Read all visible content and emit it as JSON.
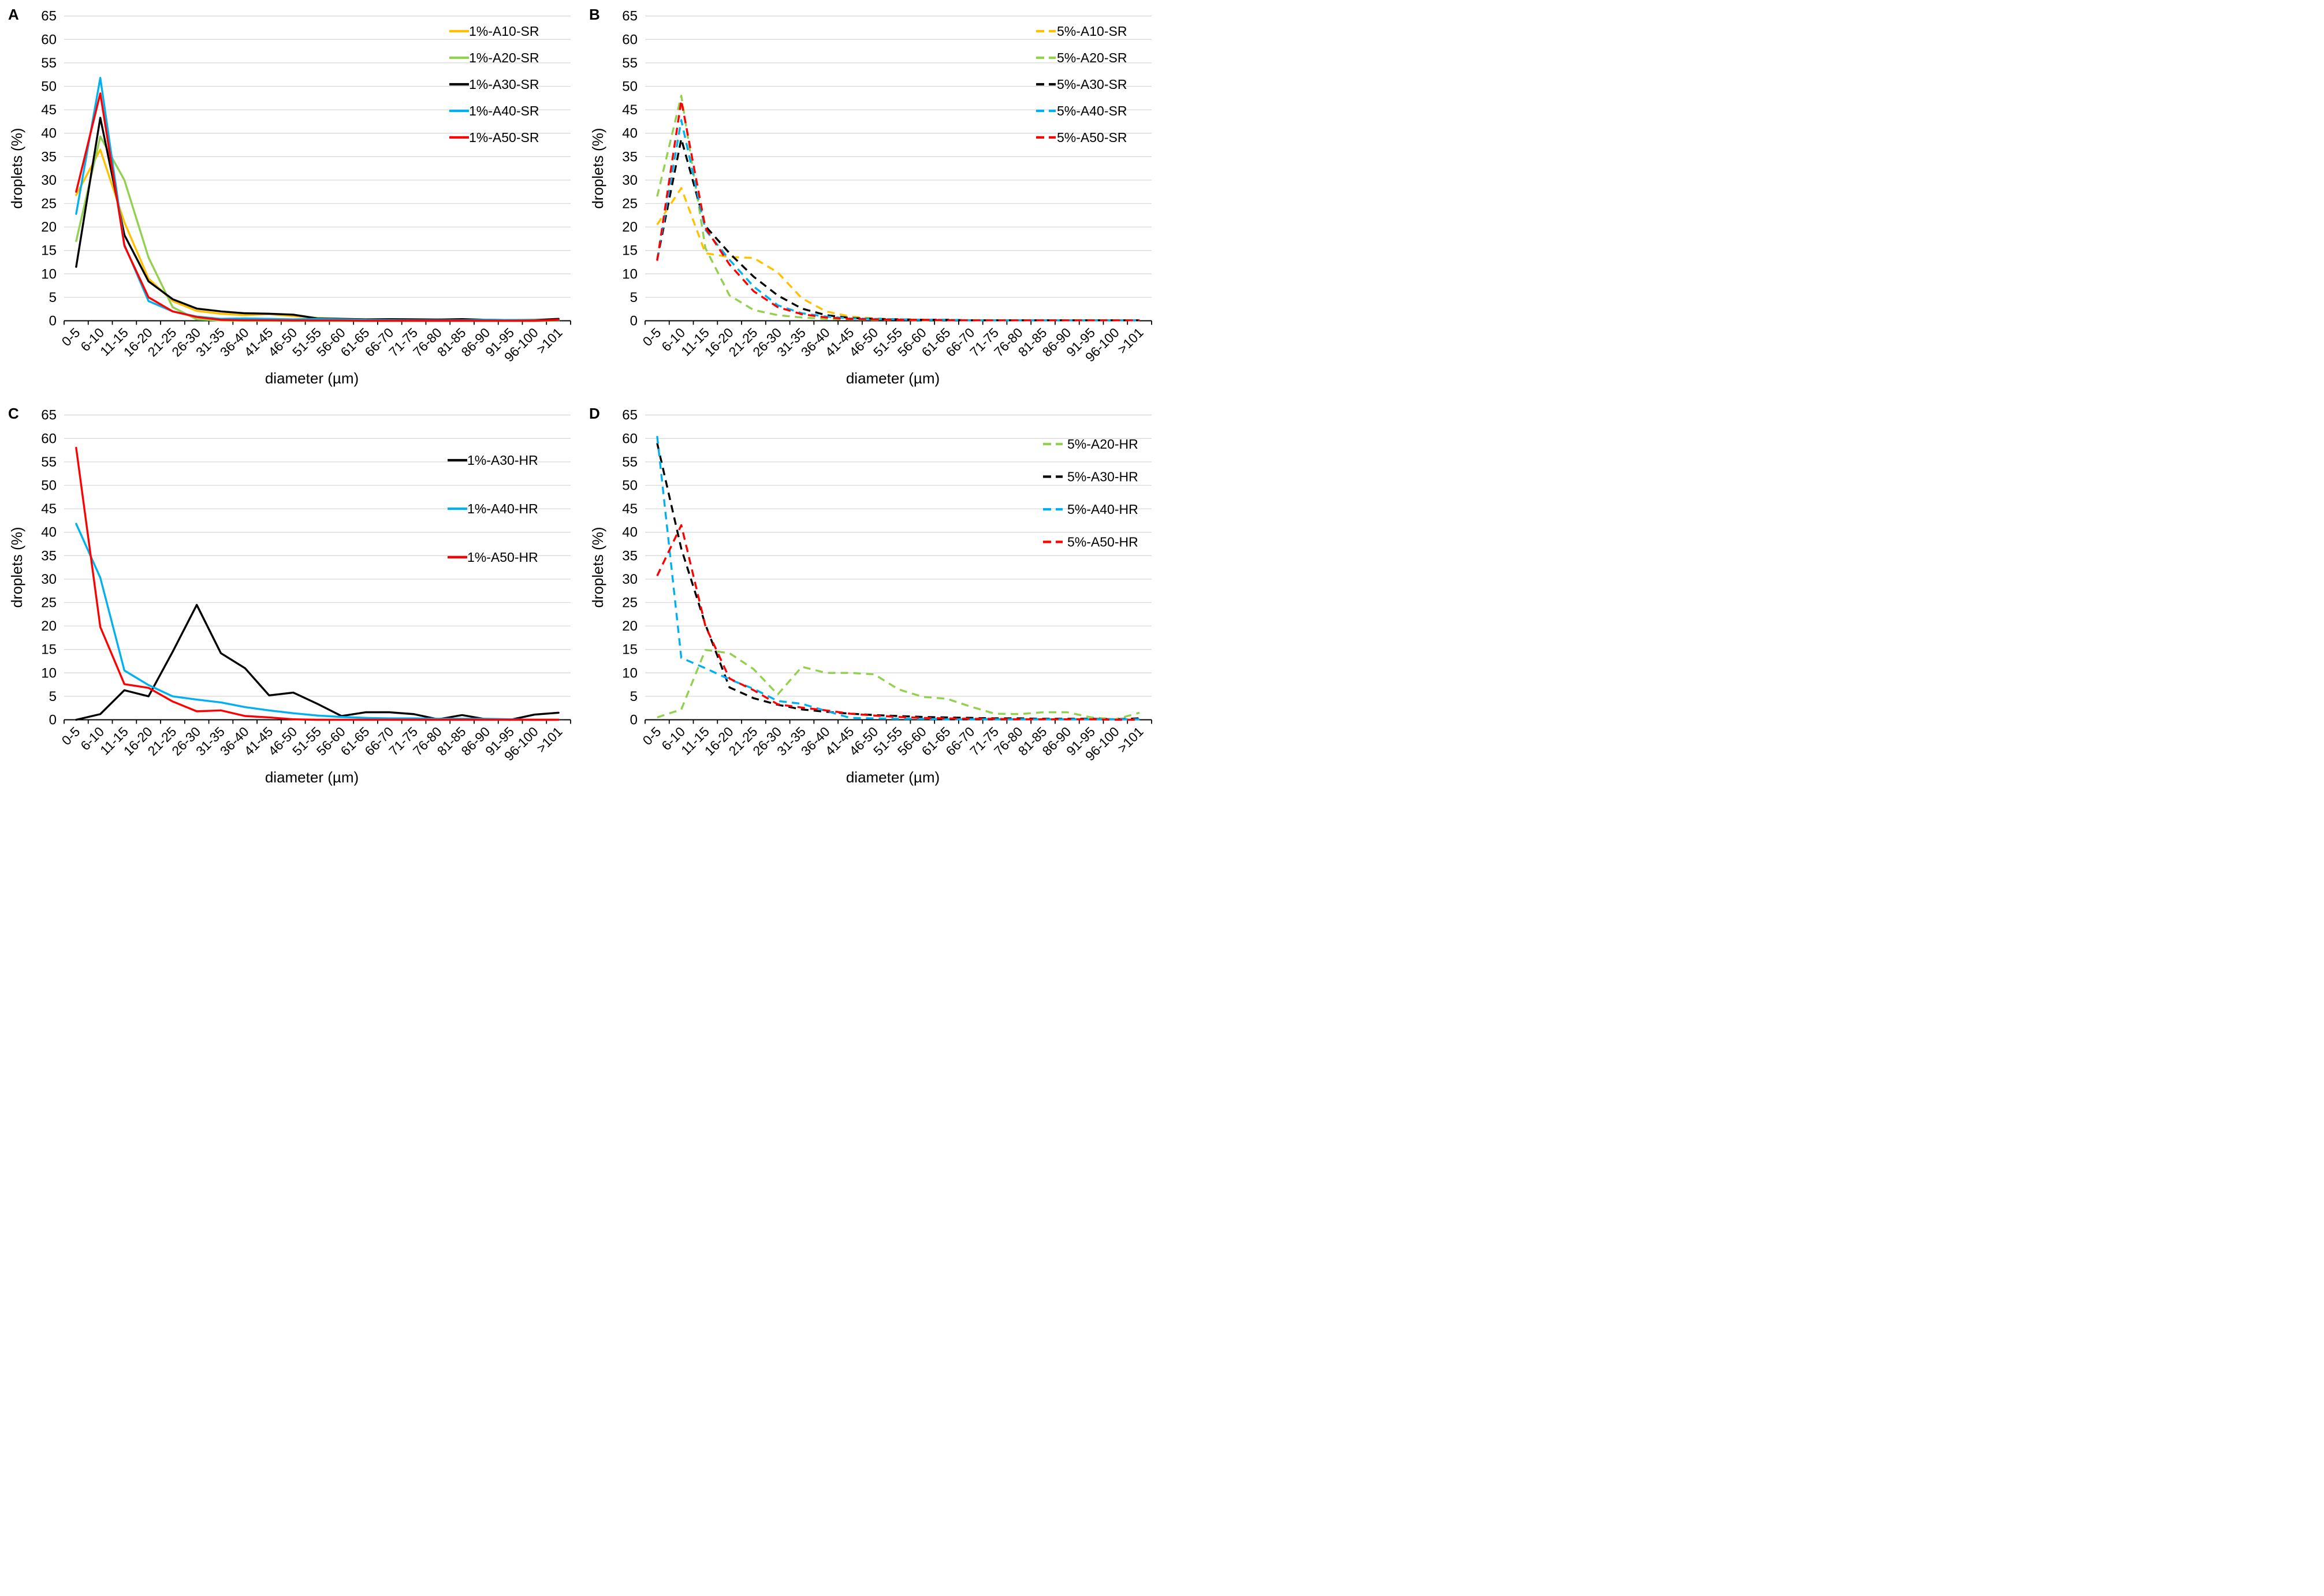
{
  "axes": {
    "ylabel": "droplets (%)",
    "xlabel": "diameter (µm)",
    "ymin": 0,
    "ymax": 65,
    "ystep": 5,
    "grid_color": "#D9D9D9",
    "axis_color": "#000000"
  },
  "categories": [
    "0-5",
    "6-10",
    "11-15",
    "16-20",
    "21-25",
    "26-30",
    "31-35",
    "36-40",
    "41-45",
    "46-50",
    "51-55",
    "56-60",
    "61-65",
    "66-70",
    "71-75",
    "76-80",
    "81-85",
    "86-90",
    "91-95",
    "96-100",
    ">101"
  ],
  "chart_data": [
    {
      "panel": "A",
      "type": "line",
      "legend_position": "top-right",
      "xlabel": "diameter (µm)",
      "ylabel": "droplets (%)",
      "ylim": [
        0,
        65
      ],
      "series": [
        {
          "name": "1%-A10-SR",
          "color": "#FFC000",
          "dashed": false,
          "values": [
            26.8,
            36.5,
            21.0,
            9.0,
            4.2,
            2.1,
            1.5,
            1.2,
            1.4,
            1.0,
            0.6,
            0.4,
            0.3,
            0.3,
            0.2,
            0.2,
            0.3,
            0.2,
            0.1,
            0.2,
            0.1
          ]
        },
        {
          "name": "1%-A20-SR",
          "color": "#92D050",
          "dashed": false,
          "values": [
            17.0,
            39.3,
            30.0,
            13.5,
            2.9,
            0.3,
            0.05,
            0,
            0,
            0,
            0,
            0,
            0,
            0,
            0,
            0,
            0,
            0,
            0,
            0,
            0
          ]
        },
        {
          "name": "1%-A30-SR",
          "color": "#000000",
          "dashed": false,
          "values": [
            11.5,
            43.3,
            18.3,
            8.4,
            4.6,
            2.6,
            2.0,
            1.6,
            1.5,
            1.3,
            0.5,
            0.4,
            0.3,
            0.35,
            0.3,
            0.25,
            0.35,
            0.2,
            0.15,
            0.15,
            0.4
          ]
        },
        {
          "name": "1%-A40-SR",
          "color": "#00B0F0",
          "dashed": false,
          "values": [
            22.8,
            51.8,
            16.2,
            4.2,
            2.0,
            0.9,
            0.4,
            0.5,
            0.4,
            0.3,
            0.4,
            0.3,
            0.2,
            0.15,
            0.1,
            0.1,
            0.1,
            0.2,
            0.15,
            0.1,
            0.1
          ]
        },
        {
          "name": "1%-A50-SR",
          "color": "#FF0000",
          "dashed": false,
          "values": [
            27.5,
            48.5,
            16.0,
            5.0,
            2.0,
            0.8,
            0.2,
            0.1,
            0.1,
            0.05,
            0.05,
            0.05,
            0,
            0,
            0,
            0,
            0,
            0,
            0,
            0,
            0.2
          ]
        }
      ]
    },
    {
      "panel": "B",
      "type": "line",
      "legend_position": "top-right",
      "xlabel": "diameter (µm)",
      "ylabel": "droplets (%)",
      "ylim": [
        0,
        65
      ],
      "series": [
        {
          "name": "5%-A10-SR",
          "color": "#FFC000",
          "dashed": true,
          "values": [
            20.5,
            28.3,
            14.4,
            13.6,
            13.4,
            10.3,
            4.8,
            2.0,
            0.9,
            0.5,
            0.3,
            0.2,
            0.2,
            0.1,
            0.1,
            0.1,
            0.1,
            0.1,
            0.1,
            0.1,
            0.1
          ]
        },
        {
          "name": "5%-A20-SR",
          "color": "#92D050",
          "dashed": true,
          "values": [
            26.5,
            48.0,
            15.5,
            5.4,
            2.3,
            1.2,
            0.7,
            0.4,
            0.3,
            0.2,
            0.2,
            0.1,
            0.1,
            0.1,
            0.1,
            0.1,
            0.1,
            0.1,
            0.1,
            0.1,
            0.1
          ]
        },
        {
          "name": "5%-A30-SR",
          "color": "#000000",
          "dashed": true,
          "values": [
            13.0,
            38.8,
            20.2,
            14.4,
            9.4,
            5.4,
            2.6,
            1.2,
            0.6,
            0.4,
            0.3,
            0.2,
            0.2,
            0.1,
            0.1,
            0.1,
            0.1,
            0.1,
            0.1,
            0.1,
            0.1
          ]
        },
        {
          "name": "5%-A40-SR",
          "color": "#00B0F0",
          "dashed": true,
          "values": [
            13.0,
            42.8,
            19.4,
            13.0,
            7.3,
            3.3,
            1.6,
            0.9,
            0.5,
            0.4,
            0.3,
            0.2,
            0.2,
            0.1,
            0.1,
            0.1,
            0.1,
            0.1,
            0.1,
            0.1,
            0.1
          ]
        },
        {
          "name": "5%-A50-SR",
          "color": "#FF0000",
          "dashed": true,
          "values": [
            12.8,
            47.0,
            19.8,
            12.0,
            6.3,
            2.9,
            1.4,
            0.7,
            0.4,
            0.3,
            0.2,
            0.2,
            0.1,
            0.1,
            0.1,
            0.1,
            0.1,
            0.1,
            0.1,
            0.1,
            0.1
          ]
        }
      ]
    },
    {
      "panel": "C",
      "type": "line",
      "legend_position": "middle-right",
      "xlabel": "diameter (µm)",
      "ylabel": "droplets (%)",
      "ylim": [
        0,
        65
      ],
      "series": [
        {
          "name": "1%-A30-HR",
          "color": "#000000",
          "dashed": false,
          "values": [
            0.0,
            1.2,
            6.3,
            5.0,
            14.5,
            24.5,
            14.2,
            11.0,
            5.2,
            5.8,
            3.4,
            0.8,
            1.6,
            1.6,
            1.2,
            0.1,
            1.0,
            0.1,
            0.0,
            1.1,
            1.5
          ]
        },
        {
          "name": "1%-A40-HR",
          "color": "#00B0F0",
          "dashed": false,
          "values": [
            41.8,
            30.3,
            10.5,
            7.4,
            5.0,
            4.3,
            3.7,
            2.7,
            2.0,
            1.4,
            0.9,
            0.6,
            0.4,
            0.3,
            0.3,
            0.2,
            0.2,
            0.2,
            0.1,
            0.0,
            0.0
          ]
        },
        {
          "name": "1%-A50-HR",
          "color": "#FF0000",
          "dashed": false,
          "values": [
            58.0,
            19.8,
            7.6,
            6.8,
            3.9,
            1.8,
            2.0,
            0.8,
            0.5,
            0.1,
            0.0,
            0.0,
            0,
            0,
            0,
            0,
            0,
            0,
            0,
            0,
            0
          ]
        }
      ]
    },
    {
      "panel": "D",
      "type": "line",
      "legend_position": "top-right",
      "xlabel": "diameter (µm)",
      "ylabel": "droplets (%)",
      "ylim": [
        0,
        65
      ],
      "series": [
        {
          "name": "5%-A20-HR",
          "color": "#92D050",
          "dashed": true,
          "values": [
            0.5,
            2.2,
            14.9,
            14.2,
            10.8,
            5.4,
            11.3,
            10.0,
            10.0,
            9.7,
            6.5,
            4.9,
            4.5,
            2.8,
            1.3,
            1.2,
            1.6,
            1.6,
            0.5,
            0.1,
            1.5
          ]
        },
        {
          "name": "5%-A30-HR",
          "color": "#000000",
          "dashed": true,
          "values": [
            59.0,
            36.5,
            20.3,
            6.9,
            4.6,
            3.2,
            2.2,
            1.7,
            1.3,
            1.0,
            0.8,
            0.6,
            0.5,
            0.4,
            0.3,
            0.3,
            0.2,
            0.2,
            0.2,
            0.1,
            0.3
          ]
        },
        {
          "name": "5%-A40-HR",
          "color": "#00B0F0",
          "dashed": true,
          "values": [
            60.5,
            13.2,
            11.0,
            8.6,
            6.6,
            4.0,
            3.4,
            1.9,
            0.4,
            0.3,
            0.2,
            0.2,
            0.1,
            0.1,
            0.1,
            0.1,
            0.1,
            0.1,
            0.1,
            0.1,
            0.1
          ]
        },
        {
          "name": "5%-A50-HR",
          "color": "#FF0000",
          "dashed": true,
          "values": [
            30.7,
            41.5,
            20.0,
            8.8,
            6.3,
            3.3,
            2.6,
            2.0,
            1.3,
            0.9,
            0.6,
            0.4,
            0.3,
            0.2,
            0.2,
            0.1,
            0.1,
            0.1,
            0.1,
            0.0,
            0.0
          ]
        }
      ]
    }
  ]
}
